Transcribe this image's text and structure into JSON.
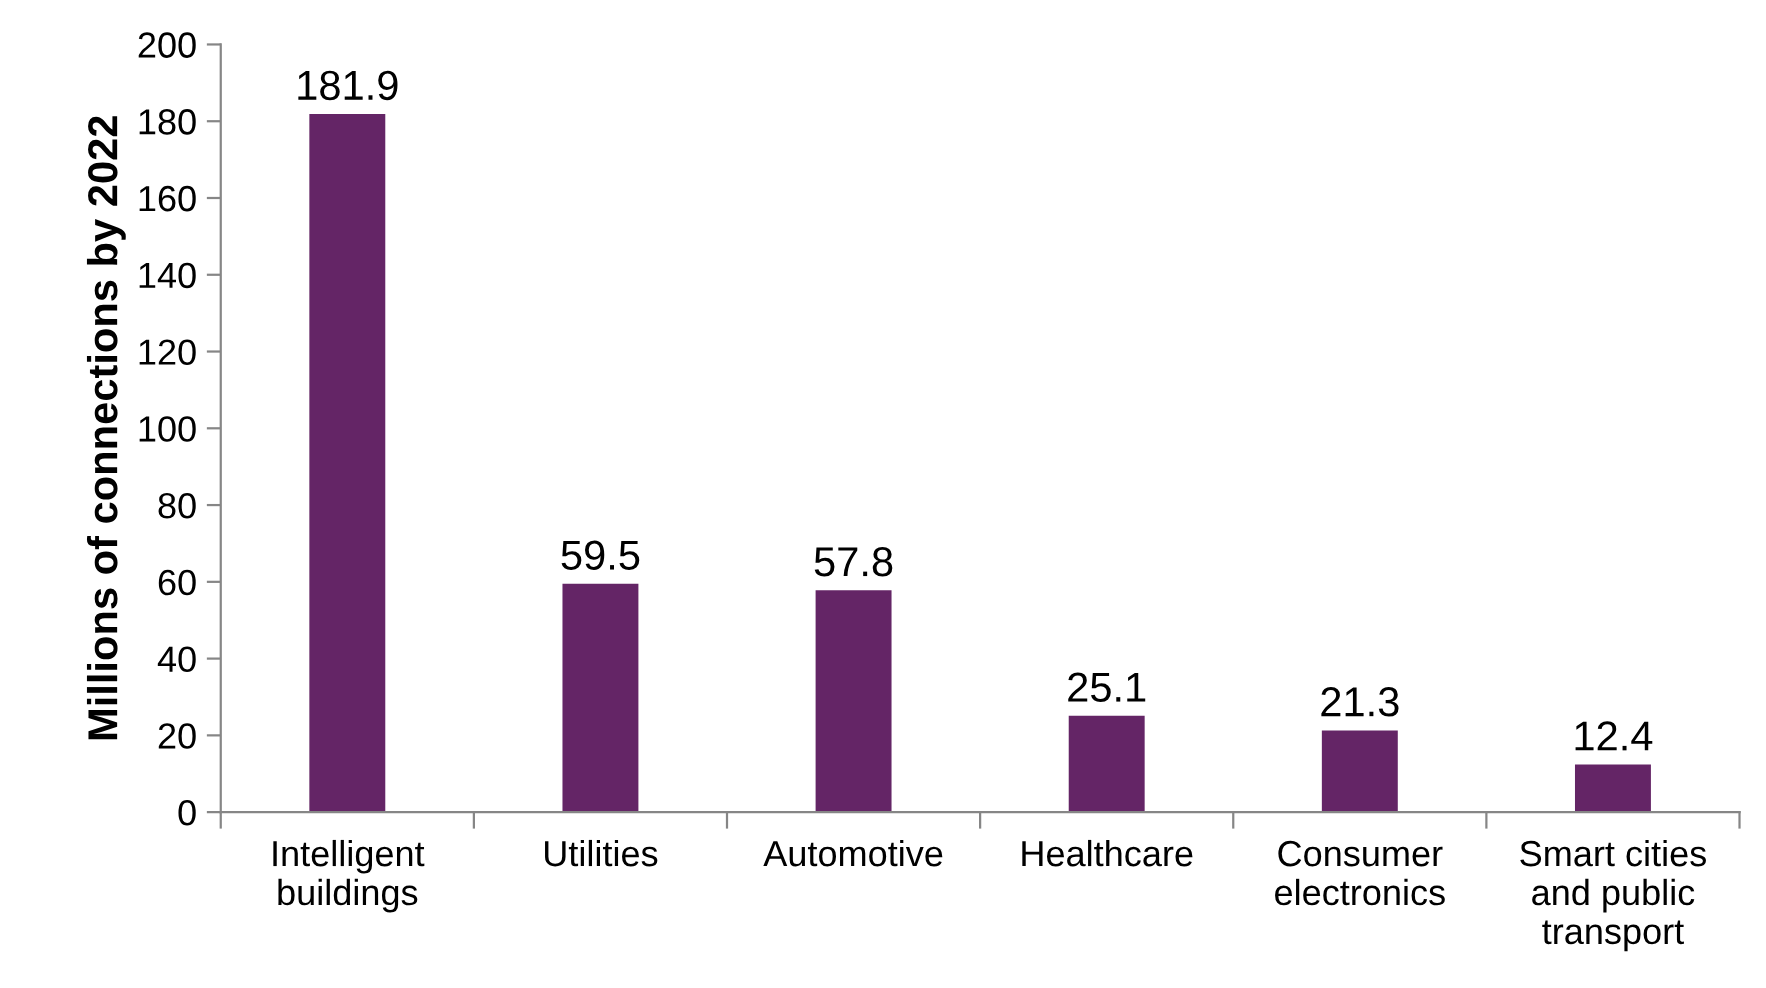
{
  "chart_data": {
    "type": "bar",
    "ylabel": "Millions of connections by 2022",
    "categories": [
      "Intelligent\nbuildings",
      "Utilities",
      "Automotive",
      "Healthcare",
      "Consumer\nelectronics",
      "Smart cities\nand public\ntransport"
    ],
    "values": [
      181.9,
      59.5,
      57.8,
      25.1,
      21.3,
      12.4
    ],
    "color": "#642566",
    "ylim": [
      0,
      200
    ],
    "yticks": [
      0,
      20,
      40,
      60,
      80,
      100,
      120,
      140,
      160,
      180,
      200
    ],
    "grid": false,
    "legend": false,
    "data_labels": true
  }
}
